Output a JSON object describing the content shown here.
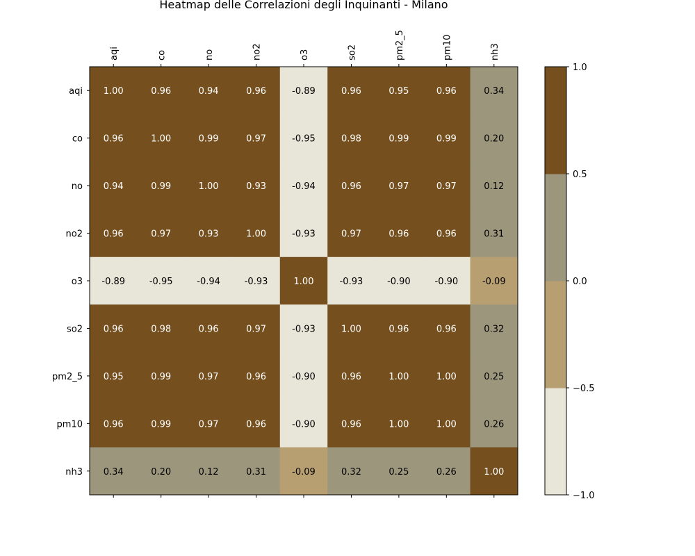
{
  "chart_data": {
    "type": "heatmap",
    "title": "Heatmap delle Correlazioni degli Inquinanti - Milano",
    "variables": [
      "aqi",
      "co",
      "no",
      "no2",
      "o3",
      "so2",
      "pm2_5",
      "pm10",
      "nh3"
    ],
    "values": [
      [
        1.0,
        0.96,
        0.94,
        0.96,
        -0.89,
        0.96,
        0.95,
        0.96,
        0.34
      ],
      [
        0.96,
        1.0,
        0.99,
        0.97,
        -0.95,
        0.98,
        0.99,
        0.99,
        0.2
      ],
      [
        0.94,
        0.99,
        1.0,
        0.93,
        -0.94,
        0.96,
        0.97,
        0.97,
        0.12
      ],
      [
        0.96,
        0.97,
        0.93,
        1.0,
        -0.93,
        0.97,
        0.96,
        0.96,
        0.31
      ],
      [
        -0.89,
        -0.95,
        -0.94,
        -0.93,
        1.0,
        -0.93,
        -0.9,
        -0.9,
        -0.09
      ],
      [
        0.96,
        0.98,
        0.96,
        0.97,
        -0.93,
        1.0,
        0.96,
        0.96,
        0.32
      ],
      [
        0.95,
        0.99,
        0.97,
        0.96,
        -0.9,
        0.96,
        1.0,
        1.0,
        0.25
      ],
      [
        0.96,
        0.99,
        0.97,
        0.96,
        -0.9,
        0.96,
        1.0,
        1.0,
        0.26
      ],
      [
        0.34,
        0.2,
        0.12,
        0.31,
        -0.09,
        0.32,
        0.25,
        0.26,
        1.0
      ]
    ],
    "colorbar": {
      "range": [
        -1.0,
        1.0
      ],
      "ticks": [
        1.0,
        0.5,
        0.0,
        -0.5,
        -1.0
      ],
      "tick_labels": [
        "1.0",
        "0.5",
        "0.0",
        "−0.5",
        "−1.0"
      ],
      "bins": [
        {
          "min": -1.0,
          "max": -0.5,
          "color": "#e8e6d9"
        },
        {
          "min": -0.5,
          "max": 0.0,
          "color": "#b89f72"
        },
        {
          "min": 0.0,
          "max": 0.5,
          "color": "#9c967d"
        },
        {
          "min": 0.5,
          "max": 1.0,
          "color": "#75501e"
        }
      ]
    },
    "colors": {
      "dark_text": "#000000",
      "light_text": "#ffffff",
      "frame": "#000000"
    }
  }
}
